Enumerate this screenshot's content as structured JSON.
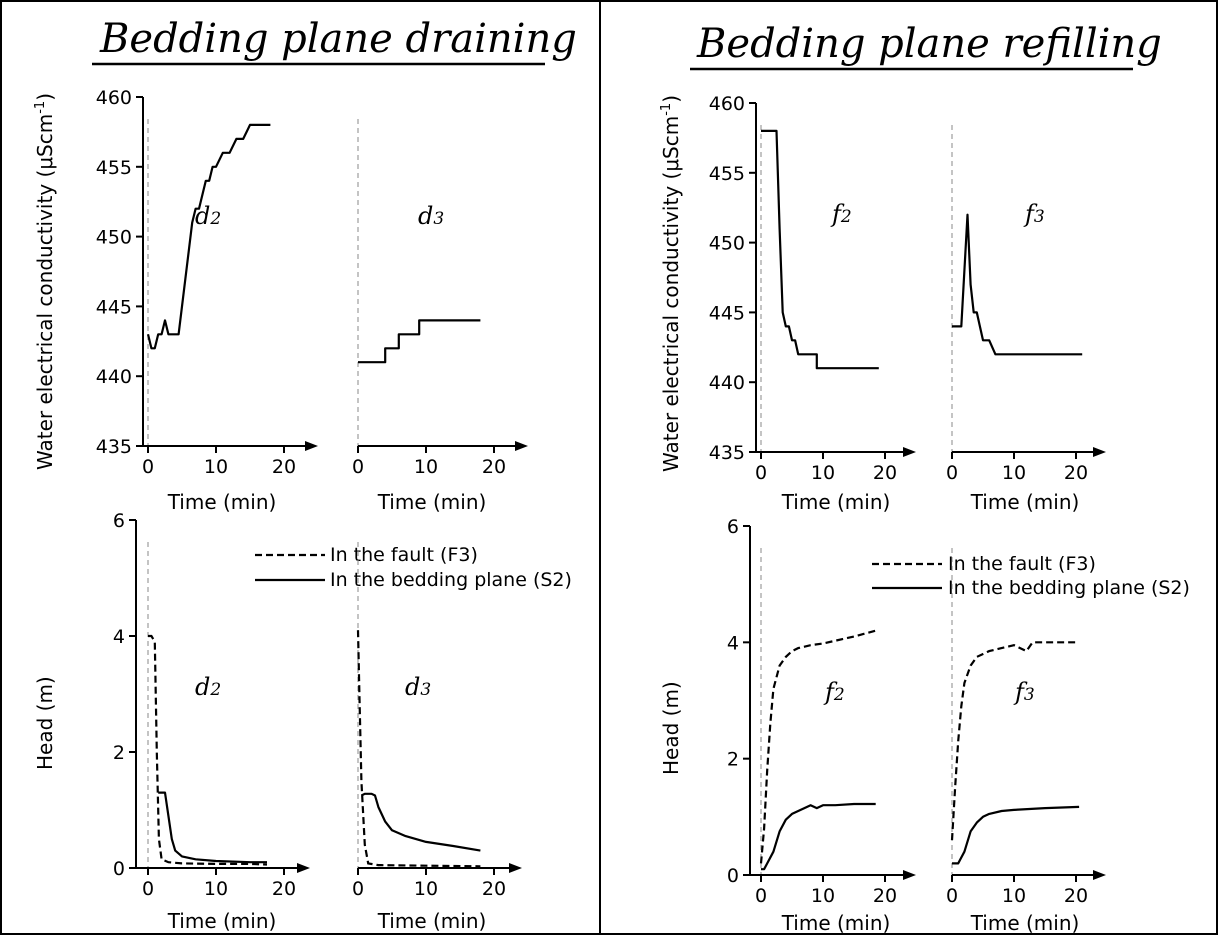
{
  "titles": {
    "left": "Bedding plane draining",
    "right": "Bedding plane refilling"
  },
  "ylabels": {
    "conductivity": "Water electrical conductivity (μScm",
    "conductivity_exp": "-1",
    "conductivity_close": ")",
    "head": "Head (m)"
  },
  "xlabel": "Time (min)",
  "legend": {
    "fault": "In the fault (F3)",
    "bedding": "In the bedding plane (S2)"
  },
  "chart_data": [
    {
      "type": "line",
      "id": "cond-d2",
      "label": "d2",
      "xlim": [
        0,
        25
      ],
      "ylim": [
        435,
        460
      ],
      "xticks": [
        0,
        10,
        20
      ],
      "yticks": [
        435,
        440,
        445,
        450,
        455,
        460
      ],
      "series": [
        {
          "style": "solid",
          "x": [
            0,
            0.5,
            1,
            1.5,
            2,
            2.5,
            3,
            4,
            4.5,
            5,
            5.5,
            6,
            6.5,
            7,
            7.5,
            8,
            8.5,
            9,
            9.5,
            10,
            11,
            12,
            13,
            14,
            15,
            16,
            17,
            18
          ],
          "y": [
            443,
            442,
            442,
            443,
            443,
            444,
            443,
            443,
            443,
            445,
            447,
            449,
            451,
            452,
            452,
            453,
            454,
            454,
            455,
            455,
            456,
            456,
            457,
            457,
            458,
            458,
            458,
            458
          ]
        }
      ]
    },
    {
      "type": "line",
      "id": "cond-d3",
      "label": "d3",
      "xlim": [
        0,
        25
      ],
      "ylim": [
        435,
        460
      ],
      "xticks": [
        0,
        10,
        20
      ],
      "series": [
        {
          "style": "solid",
          "x": [
            0,
            4,
            4,
            6,
            6,
            7,
            7,
            9,
            9,
            12,
            18
          ],
          "y": [
            441,
            441,
            442,
            442,
            443,
            443,
            443,
            443,
            444,
            444,
            444
          ]
        }
      ]
    },
    {
      "type": "line",
      "id": "head-d2",
      "label": "d2",
      "xlim": [
        0,
        25
      ],
      "ylim": [
        0,
        6
      ],
      "xticks": [
        0,
        10,
        20
      ],
      "yticks": [
        0,
        2,
        4,
        6
      ],
      "series": [
        {
          "name": "In the fault (F3)",
          "style": "dash",
          "x": [
            0,
            0.5,
            1,
            1.3,
            1.6,
            2,
            3,
            5,
            10,
            15,
            17.5
          ],
          "y": [
            4.0,
            4.0,
            3.9,
            2.0,
            0.5,
            0.15,
            0.1,
            0.08,
            0.07,
            0.07,
            0.06
          ]
        },
        {
          "name": "In the bedding plane (S2)",
          "style": "solid",
          "x": [
            1.5,
            2.5,
            3,
            3.5,
            4,
            5,
            7,
            10,
            15,
            17.5
          ],
          "y": [
            1.3,
            1.3,
            0.9,
            0.5,
            0.3,
            0.2,
            0.15,
            0.12,
            0.1,
            0.1
          ]
        }
      ]
    },
    {
      "type": "line",
      "id": "head-d3",
      "label": "d3",
      "xlim": [
        0,
        25
      ],
      "ylim": [
        0,
        6
      ],
      "xticks": [
        0,
        10,
        20
      ],
      "series": [
        {
          "name": "In the fault (F3)",
          "style": "dash",
          "x": [
            0,
            0.2,
            0.5,
            1,
            1.5,
            3,
            10,
            18
          ],
          "y": [
            4.1,
            3.0,
            1.5,
            0.4,
            0.08,
            0.05,
            0.04,
            0.03
          ]
        },
        {
          "name": "In the bedding plane (S2)",
          "style": "solid",
          "x": [
            0.5,
            1,
            2,
            2.5,
            3,
            4,
            5,
            7,
            10,
            14,
            18
          ],
          "y": [
            1.25,
            1.28,
            1.28,
            1.25,
            1.05,
            0.8,
            0.65,
            0.55,
            0.45,
            0.38,
            0.3
          ]
        }
      ]
    },
    {
      "type": "line",
      "id": "cond-f2",
      "label": "f2",
      "xlim": [
        0,
        25
      ],
      "ylim": [
        435,
        460
      ],
      "xticks": [
        0,
        10,
        20
      ],
      "yticks": [
        435,
        440,
        445,
        450,
        455,
        460
      ],
      "series": [
        {
          "style": "solid",
          "x": [
            0,
            1.5,
            2.5,
            3,
            3.5,
            4,
            4.5,
            5,
            5.5,
            6,
            9,
            9,
            14,
            19
          ],
          "y": [
            458,
            458,
            458,
            451,
            445,
            444,
            444,
            443,
            443,
            442,
            442,
            441,
            441,
            441
          ]
        }
      ]
    },
    {
      "type": "line",
      "id": "cond-f3",
      "label": "f3",
      "xlim": [
        0,
        25
      ],
      "ylim": [
        435,
        460
      ],
      "xticks": [
        0,
        10,
        20
      ],
      "series": [
        {
          "style": "solid",
          "x": [
            0,
            1.5,
            2,
            2.5,
            3,
            3.5,
            4,
            4.5,
            5,
            5.5,
            6,
            7,
            10,
            15,
            21
          ],
          "y": [
            444,
            444,
            448,
            452,
            447,
            445,
            445,
            444,
            443,
            443,
            443,
            442,
            442,
            442,
            442
          ]
        }
      ]
    },
    {
      "type": "line",
      "id": "head-f2",
      "label": "f2",
      "xlim": [
        0,
        25
      ],
      "ylim": [
        0,
        6
      ],
      "xticks": [
        0,
        10,
        20
      ],
      "yticks": [
        0,
        2,
        4,
        6
      ],
      "series": [
        {
          "name": "In the fault (F3)",
          "style": "dash",
          "x": [
            0,
            0.5,
            1,
            1.5,
            2,
            3,
            4,
            5,
            6,
            8,
            10,
            15,
            18.5
          ],
          "y": [
            0.2,
            0.8,
            1.8,
            2.6,
            3.2,
            3.6,
            3.75,
            3.85,
            3.9,
            3.95,
            3.98,
            4.1,
            4.2
          ]
        },
        {
          "name": "In the bedding plane (S2)",
          "style": "solid",
          "x": [
            0,
            0.5,
            1,
            2,
            3,
            4,
            5,
            6,
            8,
            9,
            10,
            12,
            15,
            18.5
          ],
          "y": [
            0.1,
            0.1,
            0.2,
            0.4,
            0.75,
            0.95,
            1.05,
            1.1,
            1.2,
            1.15,
            1.2,
            1.2,
            1.22,
            1.22
          ]
        }
      ]
    },
    {
      "type": "line",
      "id": "head-f3",
      "label": "f3",
      "xlim": [
        0,
        25
      ],
      "ylim": [
        0,
        6
      ],
      "xticks": [
        0,
        10,
        20
      ],
      "series": [
        {
          "name": "In the fault (F3)",
          "style": "dash",
          "x": [
            0,
            0.5,
            1,
            1.5,
            2,
            3,
            4,
            6,
            8,
            10,
            12,
            13,
            15,
            18,
            20.5
          ],
          "y": [
            0.6,
            1.5,
            2.3,
            2.9,
            3.3,
            3.6,
            3.75,
            3.85,
            3.9,
            3.95,
            3.85,
            4.0,
            4.0,
            4.0,
            4.0
          ]
        },
        {
          "name": "In the bedding plane (S2)",
          "style": "solid",
          "x": [
            0,
            1,
            1.5,
            2,
            3,
            4,
            5,
            6,
            8,
            10,
            15,
            20.5
          ],
          "y": [
            0.2,
            0.2,
            0.3,
            0.4,
            0.75,
            0.9,
            1.0,
            1.05,
            1.1,
            1.12,
            1.15,
            1.17
          ]
        }
      ]
    }
  ]
}
